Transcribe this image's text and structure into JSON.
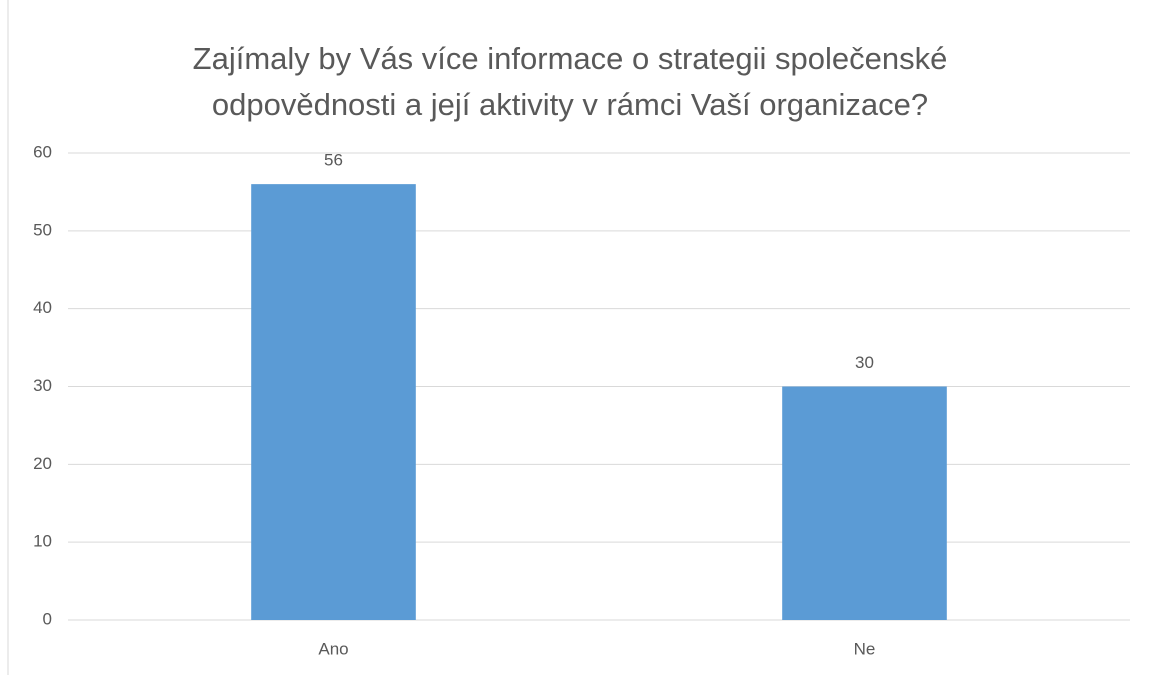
{
  "chart_data": {
    "type": "bar",
    "title": "Zajímaly by Vás více informace o strategii společenské odpovědnosti a její aktivity v rámci Vaší organizace?",
    "categories": [
      "Ano",
      "Ne"
    ],
    "values": [
      56,
      30
    ],
    "color": "#5b9bd5",
    "ylim": [
      0,
      60
    ],
    "yticks": [
      0,
      10,
      20,
      30,
      40,
      50,
      60
    ],
    "grid": true
  }
}
